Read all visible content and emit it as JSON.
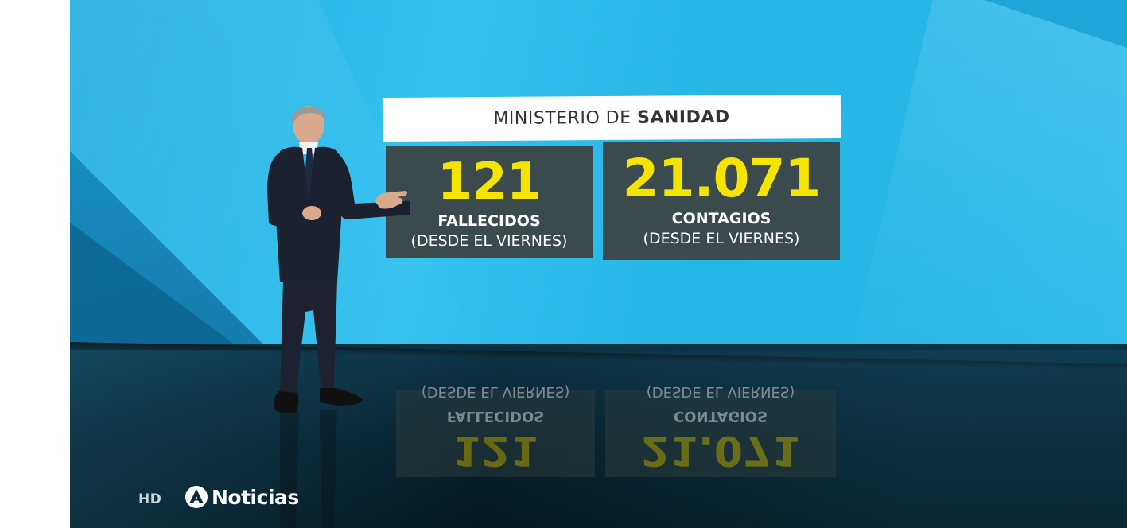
{
  "broadcast": {
    "hd_badge": "HD",
    "brand_name": "Noticias"
  },
  "header": {
    "prefix": "MINISTERIO DE",
    "highlight": "SANIDAD"
  },
  "stats": {
    "deaths": {
      "value": "121",
      "label": "FALLECIDOS",
      "sub": "(DESDE EL VIERNES)"
    },
    "cases": {
      "value": "21.071",
      "label": "CONTAGIOS",
      "sub": "(DESDE EL VIERNES)"
    }
  },
  "colors": {
    "wall": "#2bb9e8",
    "panel": "#3b4a4d",
    "value": "#f5e400"
  }
}
